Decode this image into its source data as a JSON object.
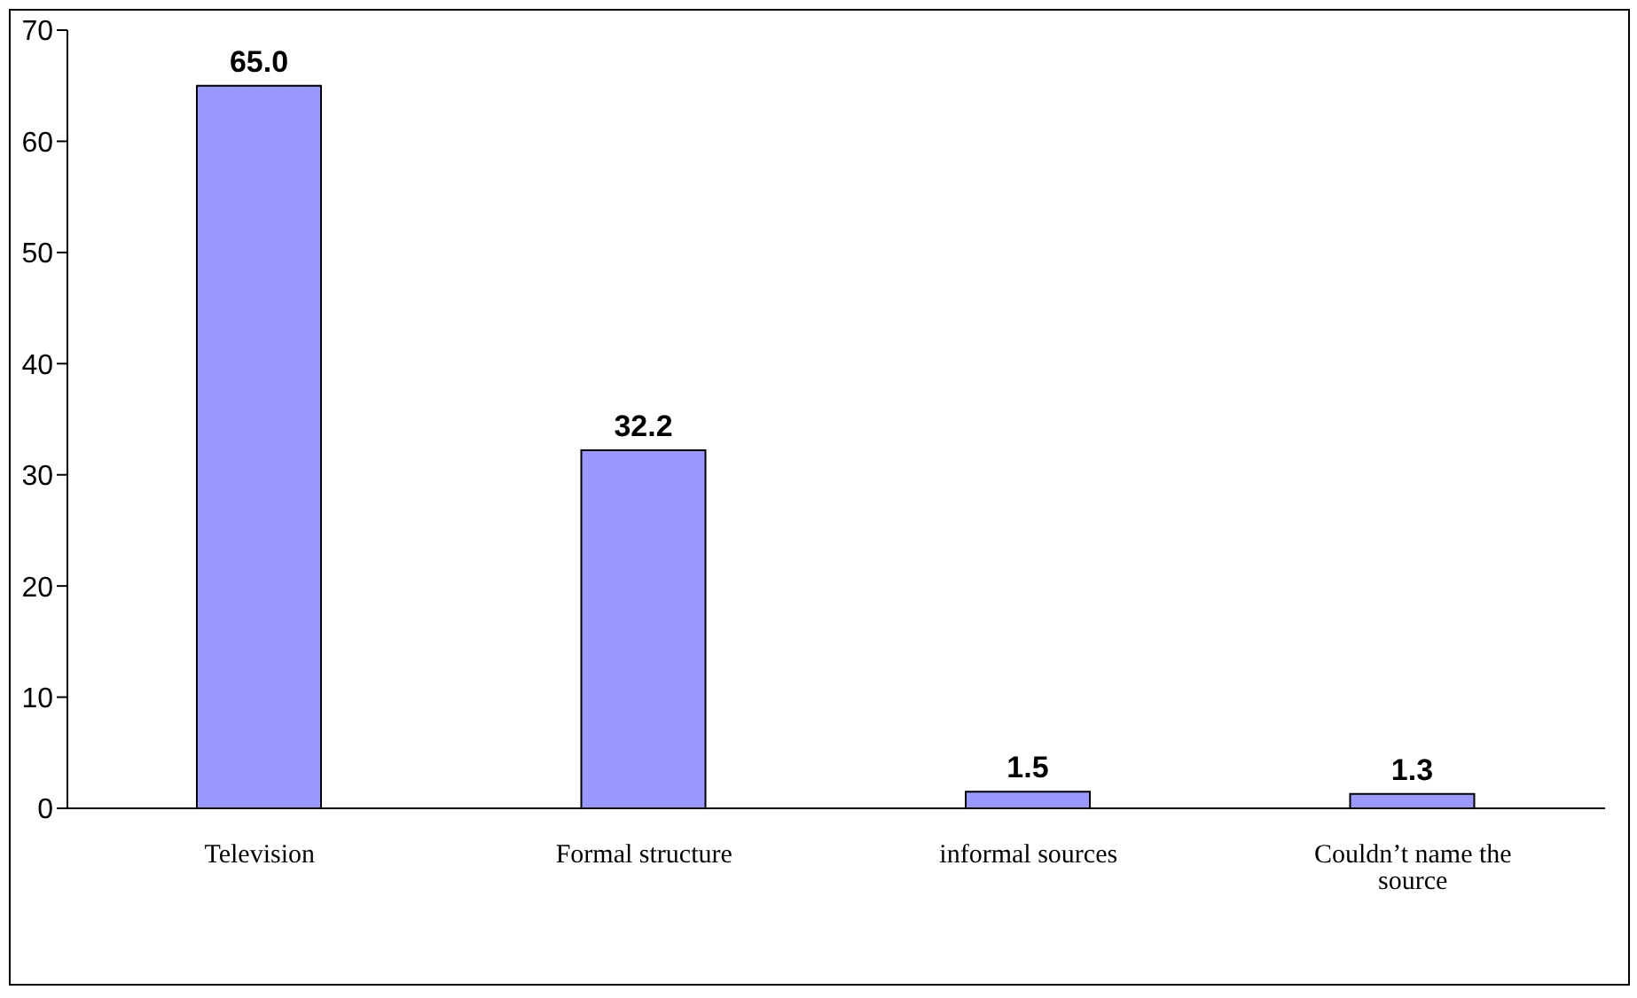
{
  "chart_data": {
    "type": "bar",
    "categories": [
      "Television",
      "Formal structure",
      "informal sources",
      "Couldn’t name the source"
    ],
    "values": [
      65.0,
      32.2,
      1.5,
      1.3
    ],
    "color": "#9999ff",
    "value_labels": [
      "65.0",
      "32.2",
      "1.5",
      "1.3"
    ],
    "ylim": [
      0,
      70
    ],
    "yticks": [
      0,
      10,
      20,
      30,
      40,
      50,
      60,
      70
    ],
    "grid": false
  }
}
